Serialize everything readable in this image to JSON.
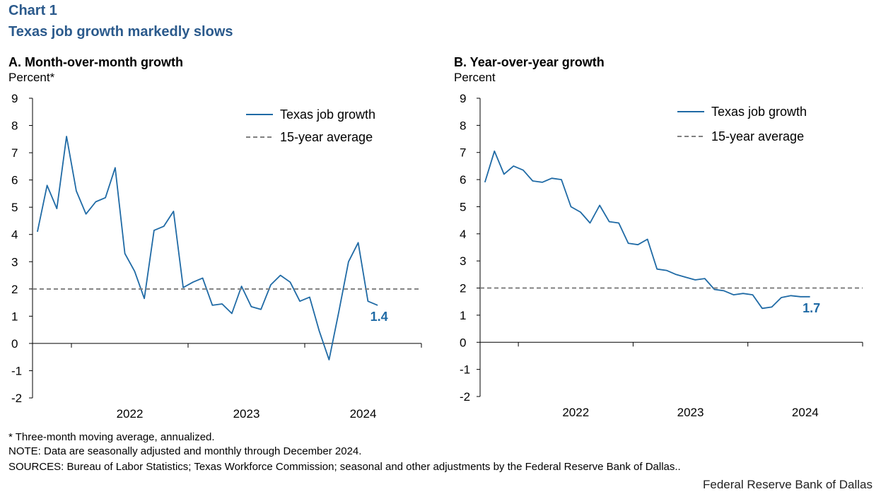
{
  "header": {
    "chart_number": "Chart 1",
    "title": "Texas job growth markedly slows"
  },
  "panels": [
    {
      "title": "A. Month-over-month growth",
      "unit": "Percent*",
      "end_label": "1.4"
    },
    {
      "title": "B. Year-over-year growth",
      "unit": "Percent",
      "end_label": "1.7"
    }
  ],
  "footer": {
    "note1": "* Three-month moving average, annualized.",
    "note2": "NOTE: Data are seasonally adjusted and monthly through December 2024.",
    "sources": "SOURCES: Bureau of Labor Statistics; Texas Workforce Commission;  seasonal and other adjustments by the Federal Reserve Bank of Dallas..",
    "brand": "Federal Reserve Bank of Dallas"
  },
  "colors": {
    "title": "#2b5a8c",
    "series": "#1f6aa5",
    "average": "#808080",
    "axis": "#000000"
  },
  "chart_data": [
    {
      "type": "line",
      "title": "A. Month-over-month growth",
      "ylabel": "Percent*",
      "ylim": [
        -2,
        9
      ],
      "yticks": [
        -2,
        -1,
        0,
        1,
        2,
        3,
        4,
        5,
        6,
        7,
        8,
        9
      ],
      "x_start": "2021-09",
      "x_end": "2024-12",
      "xticklabels": [
        "2022",
        "2023",
        "2024"
      ],
      "legend_position": "top-right",
      "series": [
        {
          "name": "Texas job growth",
          "style": "solid",
          "values": [
            4.1,
            5.8,
            4.95,
            7.6,
            5.6,
            4.75,
            5.2,
            5.35,
            6.45,
            3.3,
            2.65,
            1.65,
            4.15,
            4.3,
            4.85,
            2.05,
            2.25,
            2.4,
            1.4,
            1.45,
            1.1,
            2.1,
            1.35,
            1.25,
            2.15,
            2.5,
            2.25,
            1.55,
            1.7,
            0.45,
            -0.6,
            1.15,
            3.0,
            3.7,
            1.55,
            1.4
          ]
        },
        {
          "name": "15-year average",
          "style": "dashed",
          "value": 2.0
        }
      ],
      "end_label": "1.4"
    },
    {
      "type": "line",
      "title": "B. Year-over-year growth",
      "ylabel": "Percent",
      "ylim": [
        -2,
        9
      ],
      "yticks": [
        -2,
        -1,
        0,
        1,
        2,
        3,
        4,
        5,
        6,
        7,
        8,
        9
      ],
      "x_start": "2021-09",
      "x_end": "2024-12",
      "xticklabels": [
        "2022",
        "2023",
        "2024"
      ],
      "legend_position": "top-right",
      "series": [
        {
          "name": "Texas job growth",
          "style": "solid",
          "values": [
            5.9,
            7.05,
            6.2,
            6.5,
            6.35,
            5.95,
            5.9,
            6.05,
            6.0,
            5.0,
            4.8,
            4.4,
            5.05,
            4.45,
            4.4,
            3.65,
            3.6,
            3.8,
            2.7,
            2.65,
            2.5,
            2.4,
            2.3,
            2.35,
            1.95,
            1.9,
            1.75,
            1.8,
            1.75,
            1.25,
            1.3,
            1.65,
            1.72,
            1.68,
            1.68
          ]
        },
        {
          "name": "15-year average",
          "style": "dashed",
          "value": 2.0
        }
      ],
      "end_label": "1.7"
    }
  ]
}
